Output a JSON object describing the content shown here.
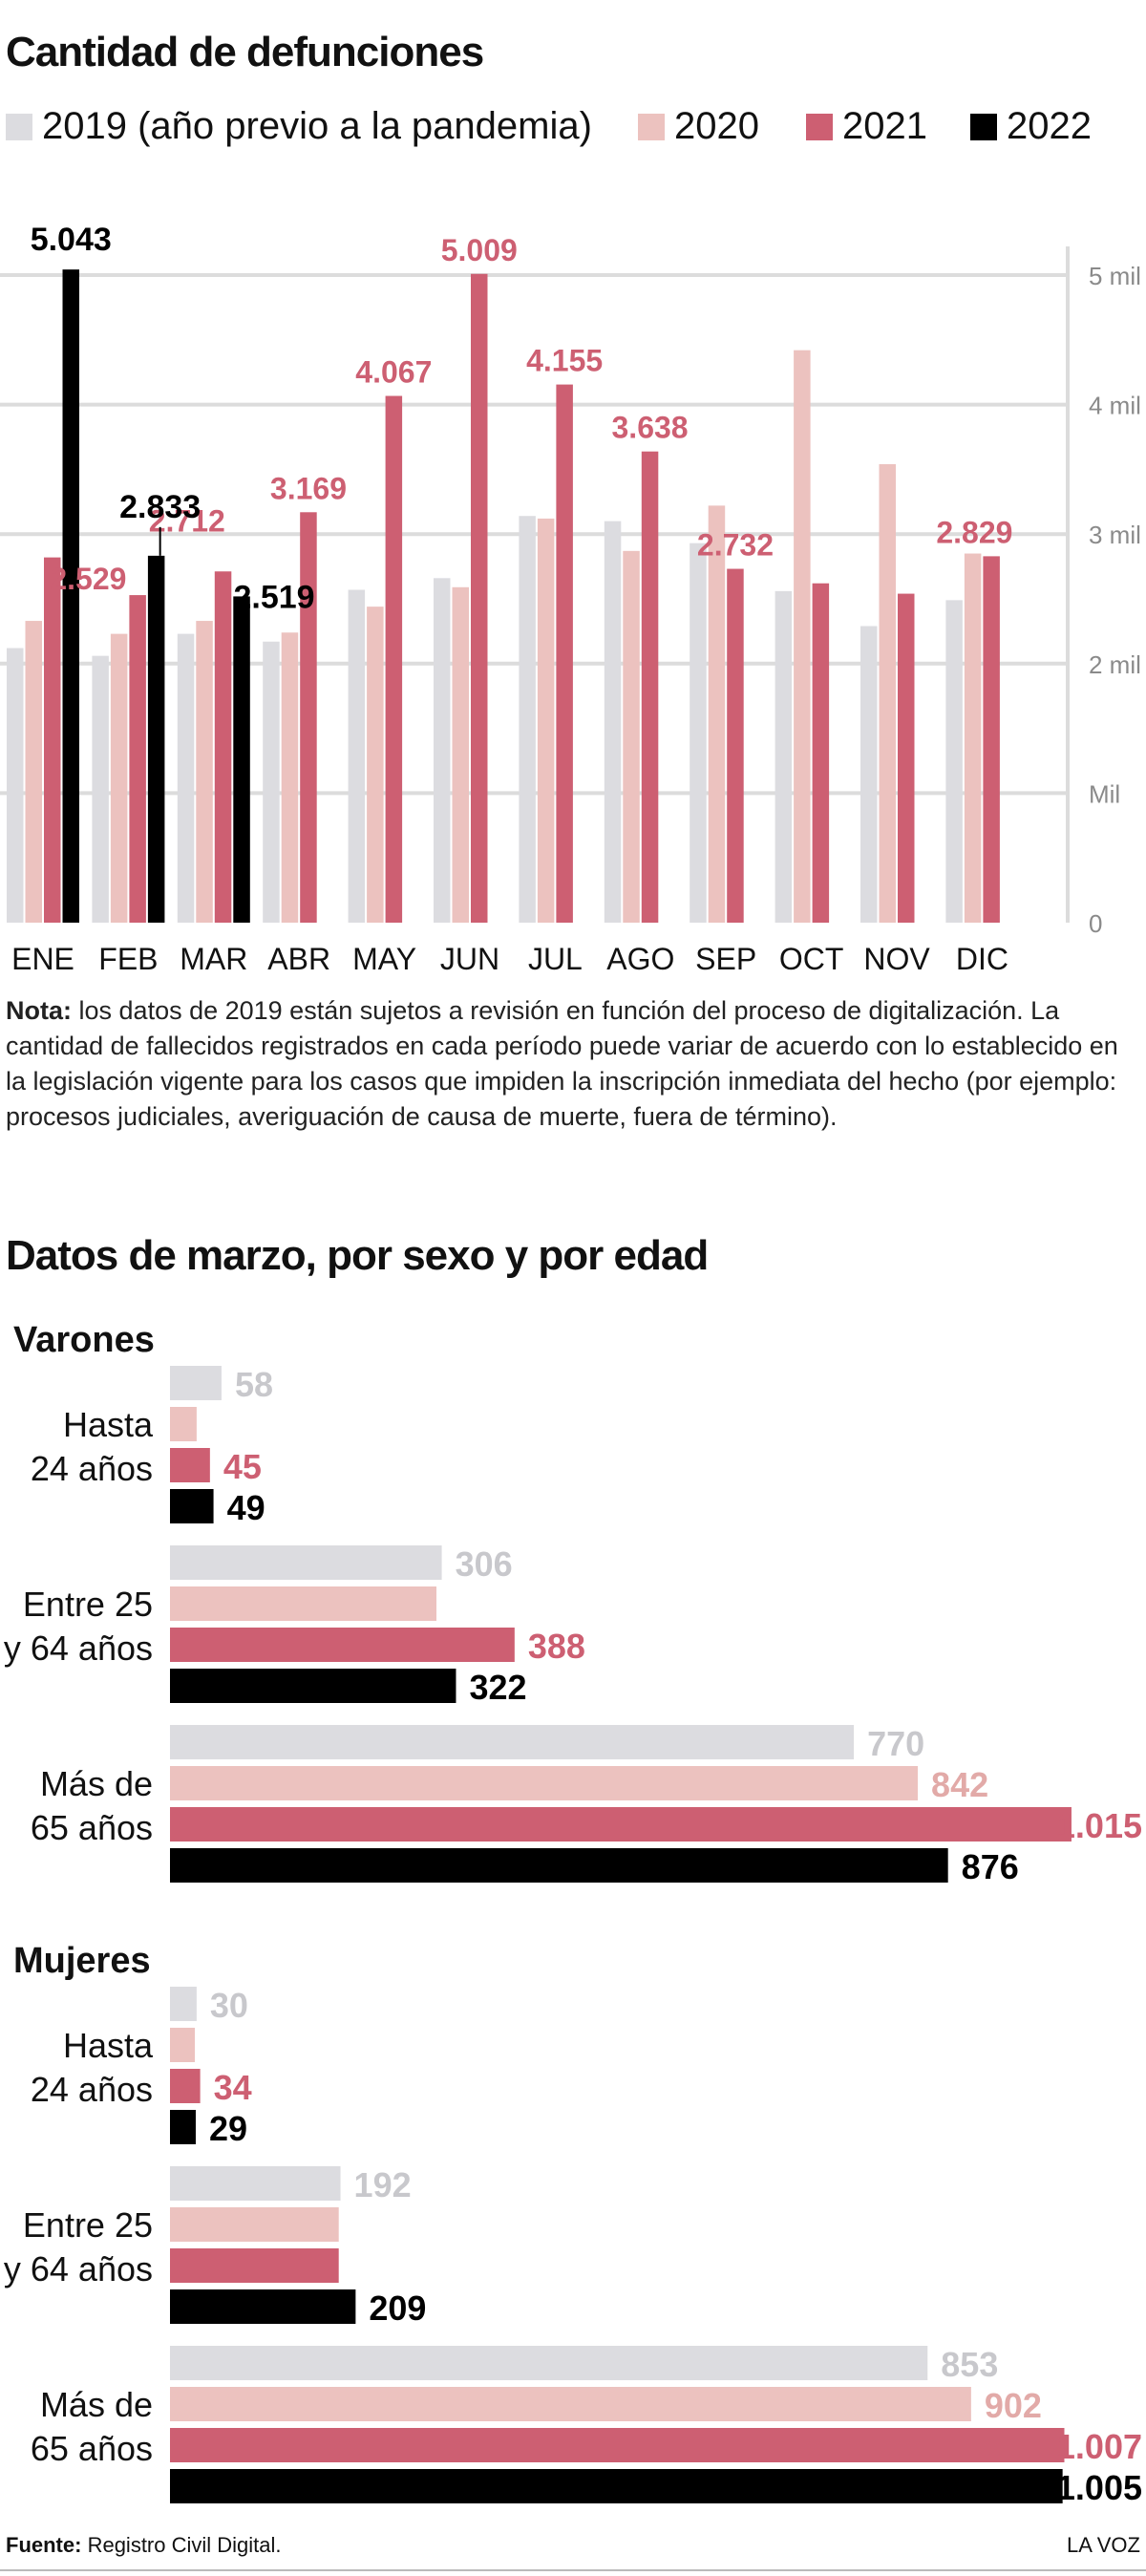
{
  "title": "Cantidad de defunciones",
  "subtitle2": "Datos de marzo, por sexo y por edad",
  "colors": {
    "2019": "#dcdce0",
    "2020": "#ecc2bf",
    "2021": "#cd5f72",
    "2022": "#000000"
  },
  "legend": [
    {
      "key": "2019",
      "label": "2019 (año previo a la pandemia)"
    },
    {
      "key": "2020",
      "label": "2020"
    },
    {
      "key": "2021",
      "label": "2021"
    },
    {
      "key": "2022",
      "label": "2022"
    }
  ],
  "note_label": "Nota:",
  "note_text": "los datos de 2019 están sujetos a revisión en función del proceso de digitalización. La cantidad de fallecidos registrados en cada período puede variar de acuerdo con lo establecido en la legislación vigente para los casos que impiden la inscripción inmediata del hecho (por ejemplo: procesos judiciales, averiguación de causa de muerte, fuera de término).",
  "groups": {
    "men": "Varones",
    "women": "Mujeres"
  },
  "footer_label": "Fuente:",
  "footer_text": "Registro Civil Digital.",
  "brand": "LA VOZ",
  "chart_data": [
    {
      "type": "bar",
      "categories": [
        "ENE",
        "FEB",
        "MAR",
        "ABR",
        "MAY",
        "JUN",
        "JUL",
        "AGO",
        "SEP",
        "OCT",
        "NOV",
        "DIC"
      ],
      "ylim": [
        0,
        5000
      ],
      "yticks": [
        {
          "value": 0,
          "label": "0"
        },
        {
          "value": 1000,
          "label": "Mil"
        },
        {
          "value": 2000,
          "label": "2 mil"
        },
        {
          "value": 3000,
          "label": "3 mil"
        },
        {
          "value": 4000,
          "label": "4 mil"
        },
        {
          "value": 5000,
          "label": "5 mil"
        }
      ],
      "grid": true,
      "series": [
        {
          "name": "2019 (año previo a la pandemia)",
          "key": "2019",
          "values": [
            2120,
            2060,
            2230,
            2170,
            2570,
            2660,
            3140,
            3100,
            2930,
            2560,
            2290,
            2490
          ],
          "labels": []
        },
        {
          "name": "2020",
          "key": "2020",
          "values": [
            2330,
            2230,
            2330,
            2240,
            2440,
            2590,
            3120,
            2870,
            3220,
            4420,
            3540,
            2850
          ],
          "labels": []
        },
        {
          "name": "2021",
          "key": "2021",
          "values": [
            2820,
            2529,
            2712,
            3169,
            4067,
            5009,
            4155,
            3638,
            2732,
            2620,
            2540,
            2829
          ],
          "labels": [
            "",
            "2.529",
            "2.712",
            "3.169",
            "4.067",
            "5.009",
            "4.155",
            "3.638",
            "2.732",
            "",
            "",
            "2.829"
          ]
        },
        {
          "name": "2022",
          "key": "2022",
          "values": [
            5043,
            2833,
            2519,
            null,
            null,
            null,
            null,
            null,
            null,
            null,
            null,
            null
          ],
          "labels": [
            "5.043",
            "2.833",
            "2.519",
            "",
            "",
            "",
            "",
            "",
            "",
            "",
            "",
            ""
          ]
        }
      ]
    },
    {
      "type": "bar",
      "orientation": "horizontal",
      "title": "Varones",
      "categories": [
        "Hasta\n24 años",
        "Entre 25\ny 64 años",
        "Más de\n65 años"
      ],
      "series": [
        {
          "name": "2019",
          "key": "2019",
          "values": [
            58,
            306,
            770
          ],
          "labels": [
            "58",
            "306",
            "770"
          ]
        },
        {
          "name": "2020",
          "key": "2020",
          "values": [
            null,
            null,
            842
          ],
          "labels": [
            "",
            "",
            "842"
          ]
        },
        {
          "name": "2021",
          "key": "2021",
          "values": [
            45,
            388,
            1015
          ],
          "labels": [
            "45",
            "388",
            "1.015"
          ]
        },
        {
          "name": "2022",
          "key": "2022",
          "values": [
            49,
            322,
            876
          ],
          "labels": [
            "49",
            "322",
            "876"
          ]
        }
      ]
    },
    {
      "type": "bar",
      "orientation": "horizontal",
      "title": "Mujeres",
      "categories": [
        "Hasta\n24 años",
        "Entre 25\ny 64 años",
        "Más de\n65 años"
      ],
      "series": [
        {
          "name": "2019",
          "key": "2019",
          "values": [
            30,
            192,
            853
          ],
          "labels": [
            "30",
            "192",
            "853"
          ]
        },
        {
          "name": "2020",
          "key": "2020",
          "values": [
            null,
            null,
            902
          ],
          "labels": [
            "",
            "",
            "902"
          ]
        },
        {
          "name": "2021",
          "key": "2021",
          "values": [
            34,
            null,
            1007
          ],
          "labels": [
            "34",
            "",
            "1.007"
          ]
        },
        {
          "name": "2022",
          "key": "2022",
          "values": [
            29,
            209,
            1005
          ],
          "labels": [
            "29",
            "209",
            "1.005"
          ]
        }
      ]
    }
  ],
  "approx_unlabeled_bars": {
    "men_2020": [
      30,
      300
    ],
    "women_2020": [
      28,
      190
    ],
    "women_2021": [
      null,
      190
    ]
  }
}
